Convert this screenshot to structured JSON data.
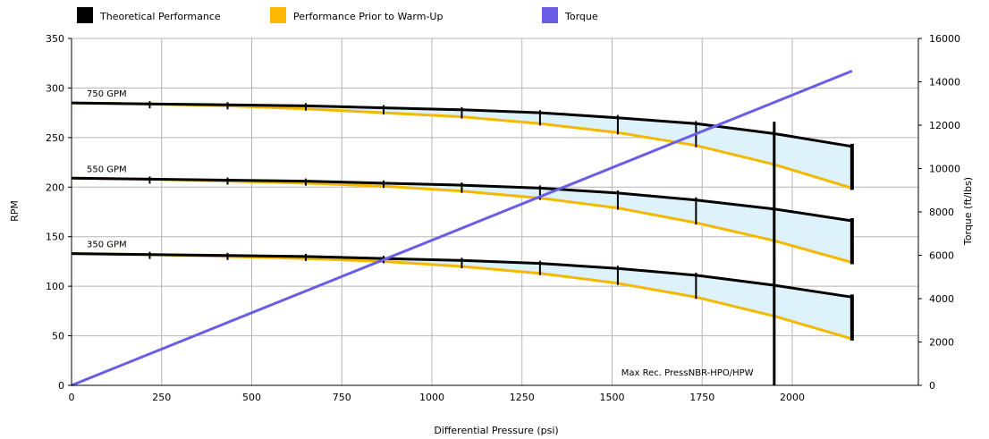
{
  "chart_data": {
    "type": "line",
    "xlabel": "Differential Pressure (psi)",
    "ylabel": "RPM",
    "y2label": "Torque (ft/lbs)",
    "xlim": [
      0,
      2350
    ],
    "ylim": [
      0,
      350
    ],
    "y2lim": [
      0,
      16000
    ],
    "x_ticks": [
      0,
      250,
      500,
      750,
      1000,
      1250,
      1500,
      1750,
      2000
    ],
    "y_ticks": [
      0,
      50,
      100,
      150,
      200,
      250,
      300,
      350
    ],
    "y2_ticks": [
      0,
      2000,
      4000,
      6000,
      8000,
      10000,
      12000,
      14000,
      16000
    ],
    "grid": true,
    "legend_position": "top",
    "legend": [
      {
        "name": "Theoretical Performance",
        "color": "#000000"
      },
      {
        "name": "Performance Prior to Warm-Up",
        "color": "#FFB900"
      },
      {
        "name": "Torque",
        "color": "#6A5DE6"
      }
    ],
    "colors": {
      "theoretical": "#000000",
      "warmup": "#F5B800",
      "torque": "#6A5DE6",
      "fill": "#DDF2FA",
      "grid": "#b5b5b5",
      "limit_line": "#000000"
    },
    "x": [
      0,
      217,
      433,
      650,
      866,
      1083,
      1300,
      1516,
      1733,
      1949,
      2166
    ],
    "flows": [
      {
        "label": "750 GPM",
        "theoretical": [
          285,
          284,
          283,
          282,
          280,
          278,
          275,
          270,
          264,
          254,
          241
        ],
        "prior_warmup": [
          285,
          284,
          282,
          279,
          275,
          271,
          264,
          255,
          242,
          223,
          199
        ]
      },
      {
        "label": "550 GPM",
        "theoretical": [
          209,
          208,
          207,
          206,
          204,
          202,
          199,
          194,
          187,
          178,
          166
        ],
        "prior_warmup": [
          209,
          208,
          206,
          204,
          201,
          196,
          189,
          179,
          164,
          146,
          124
        ]
      },
      {
        "label": "350 GPM",
        "theoretical": [
          133,
          132,
          131,
          130,
          128,
          126,
          123,
          118,
          111,
          101,
          89
        ],
        "prior_warmup": [
          133,
          132,
          130,
          128,
          125,
          120,
          113,
          103,
          89,
          70,
          47
        ]
      }
    ],
    "torque": {
      "name": "Torque",
      "x": [
        0,
        2166
      ],
      "values": [
        0,
        14500
      ]
    },
    "max_pressure": {
      "x": 1950,
      "label": "Max Rec. Press:",
      "sublabel": "NBR-HPO/HPW"
    }
  }
}
